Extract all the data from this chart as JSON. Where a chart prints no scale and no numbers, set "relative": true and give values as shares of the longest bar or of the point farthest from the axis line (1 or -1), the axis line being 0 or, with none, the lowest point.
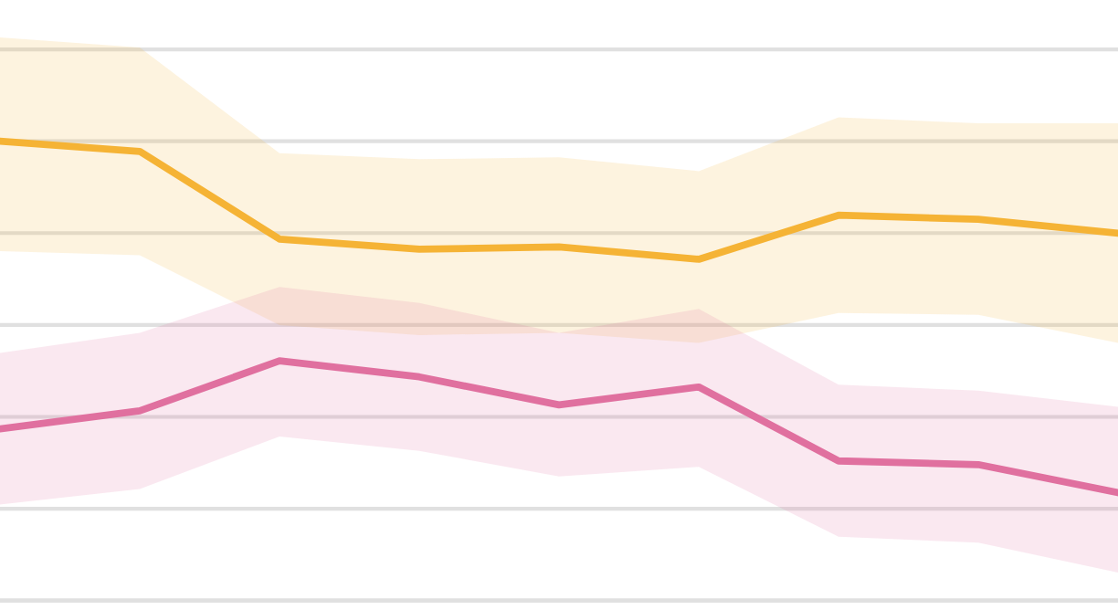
{
  "chart_data": {
    "type": "line",
    "relative": true,
    "grid": "y",
    "legend": false,
    "categories": [
      null,
      null,
      null,
      null,
      null,
      null,
      null,
      null,
      null
    ],
    "series": [
      {
        "color": "#f5b335",
        "values": [
          1.0,
          0.978,
          0.787,
          0.765,
          0.77,
          0.743,
          0.839,
          0.83,
          0.8
        ],
        "upper": [
          1.226,
          1.204,
          0.974,
          0.961,
          0.965,
          0.935,
          1.052,
          1.039,
          1.039
        ],
        "lower": [
          0.761,
          0.752,
          0.6,
          0.578,
          0.583,
          0.561,
          0.626,
          0.622,
          0.561
        ]
      },
      {
        "color": "#e0709f",
        "values": [
          0.374,
          0.413,
          0.522,
          0.487,
          0.426,
          0.465,
          0.304,
          0.296,
          0.235
        ],
        "upper": [
          0.539,
          0.583,
          0.683,
          0.648,
          0.583,
          0.635,
          0.47,
          0.457,
          0.422
        ],
        "lower": [
          0.209,
          0.243,
          0.357,
          0.326,
          0.27,
          0.291,
          0.139,
          0.126,
          0.061
        ]
      }
    ]
  }
}
